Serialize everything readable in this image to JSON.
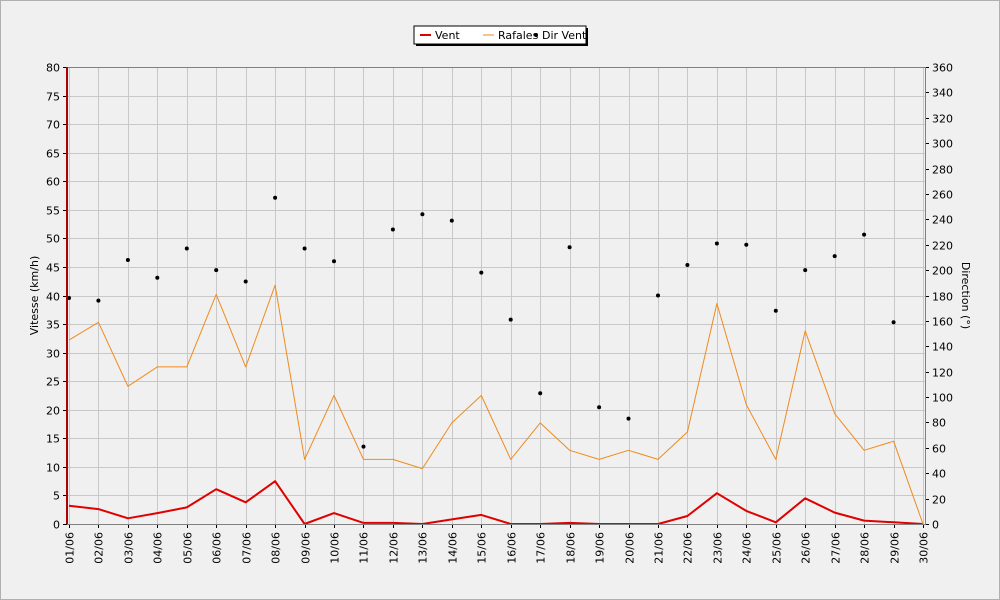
{
  "chart_data": {
    "type": "line",
    "categories": [
      "01/06",
      "02/06",
      "03/06",
      "04/06",
      "05/06",
      "06/06",
      "07/06",
      "08/06",
      "09/06",
      "10/06",
      "11/06",
      "12/06",
      "13/06",
      "14/06",
      "15/06",
      "16/06",
      "17/06",
      "18/06",
      "19/06",
      "20/06",
      "21/06",
      "22/06",
      "23/06",
      "24/06",
      "25/06",
      "26/06",
      "27/06",
      "28/06",
      "29/06",
      "30/06"
    ],
    "ylabel": "Vitesse (km/h)",
    "ylim": [
      0,
      80
    ],
    "yticks": [
      0,
      5,
      10,
      15,
      20,
      25,
      30,
      35,
      40,
      45,
      50,
      55,
      60,
      65,
      70,
      75,
      80
    ],
    "y2label": "Direction (°)",
    "y2lim": [
      0,
      360
    ],
    "y2ticks": [
      0,
      20,
      40,
      60,
      80,
      100,
      120,
      140,
      160,
      180,
      200,
      220,
      240,
      260,
      280,
      300,
      320,
      340,
      360
    ],
    "grid": true,
    "legend_position": "top-center",
    "series": [
      {
        "name": "Vent",
        "style": "line",
        "axis": "left",
        "color": "#e00000",
        "values": [
          3.2,
          2.6,
          1.0,
          1.9,
          2.9,
          6.1,
          3.8,
          7.5,
          0.0,
          1.9,
          0.2,
          0.2,
          0.0,
          0.8,
          1.6,
          0.0,
          0.0,
          0.2,
          0.0,
          0.0,
          0.0,
          1.4,
          5.4,
          2.3,
          0.3,
          4.5,
          2.0,
          0.6,
          0.3,
          0.0
        ]
      },
      {
        "name": "Rafales",
        "style": "line",
        "axis": "left",
        "color": "#f08a1e",
        "values": [
          32.2,
          35.3,
          24.1,
          27.5,
          27.5,
          40.2,
          27.5,
          41.8,
          11.3,
          22.5,
          11.3,
          11.3,
          9.7,
          17.7,
          22.5,
          11.3,
          17.7,
          12.9,
          11.3,
          12.9,
          11.3,
          16.1,
          38.6,
          20.9,
          11.3,
          33.8,
          19.3,
          12.9,
          14.5,
          0.0
        ]
      },
      {
        "name": "Dir Vent",
        "style": "points",
        "axis": "right",
        "color": "#000000",
        "values": [
          178,
          176,
          208,
          194,
          217,
          200,
          191,
          257,
          217,
          207,
          61,
          232,
          244,
          239,
          198,
          161,
          103,
          218,
          92,
          83,
          180,
          204,
          221,
          220,
          168,
          200,
          211,
          228,
          159,
          null
        ]
      }
    ]
  }
}
